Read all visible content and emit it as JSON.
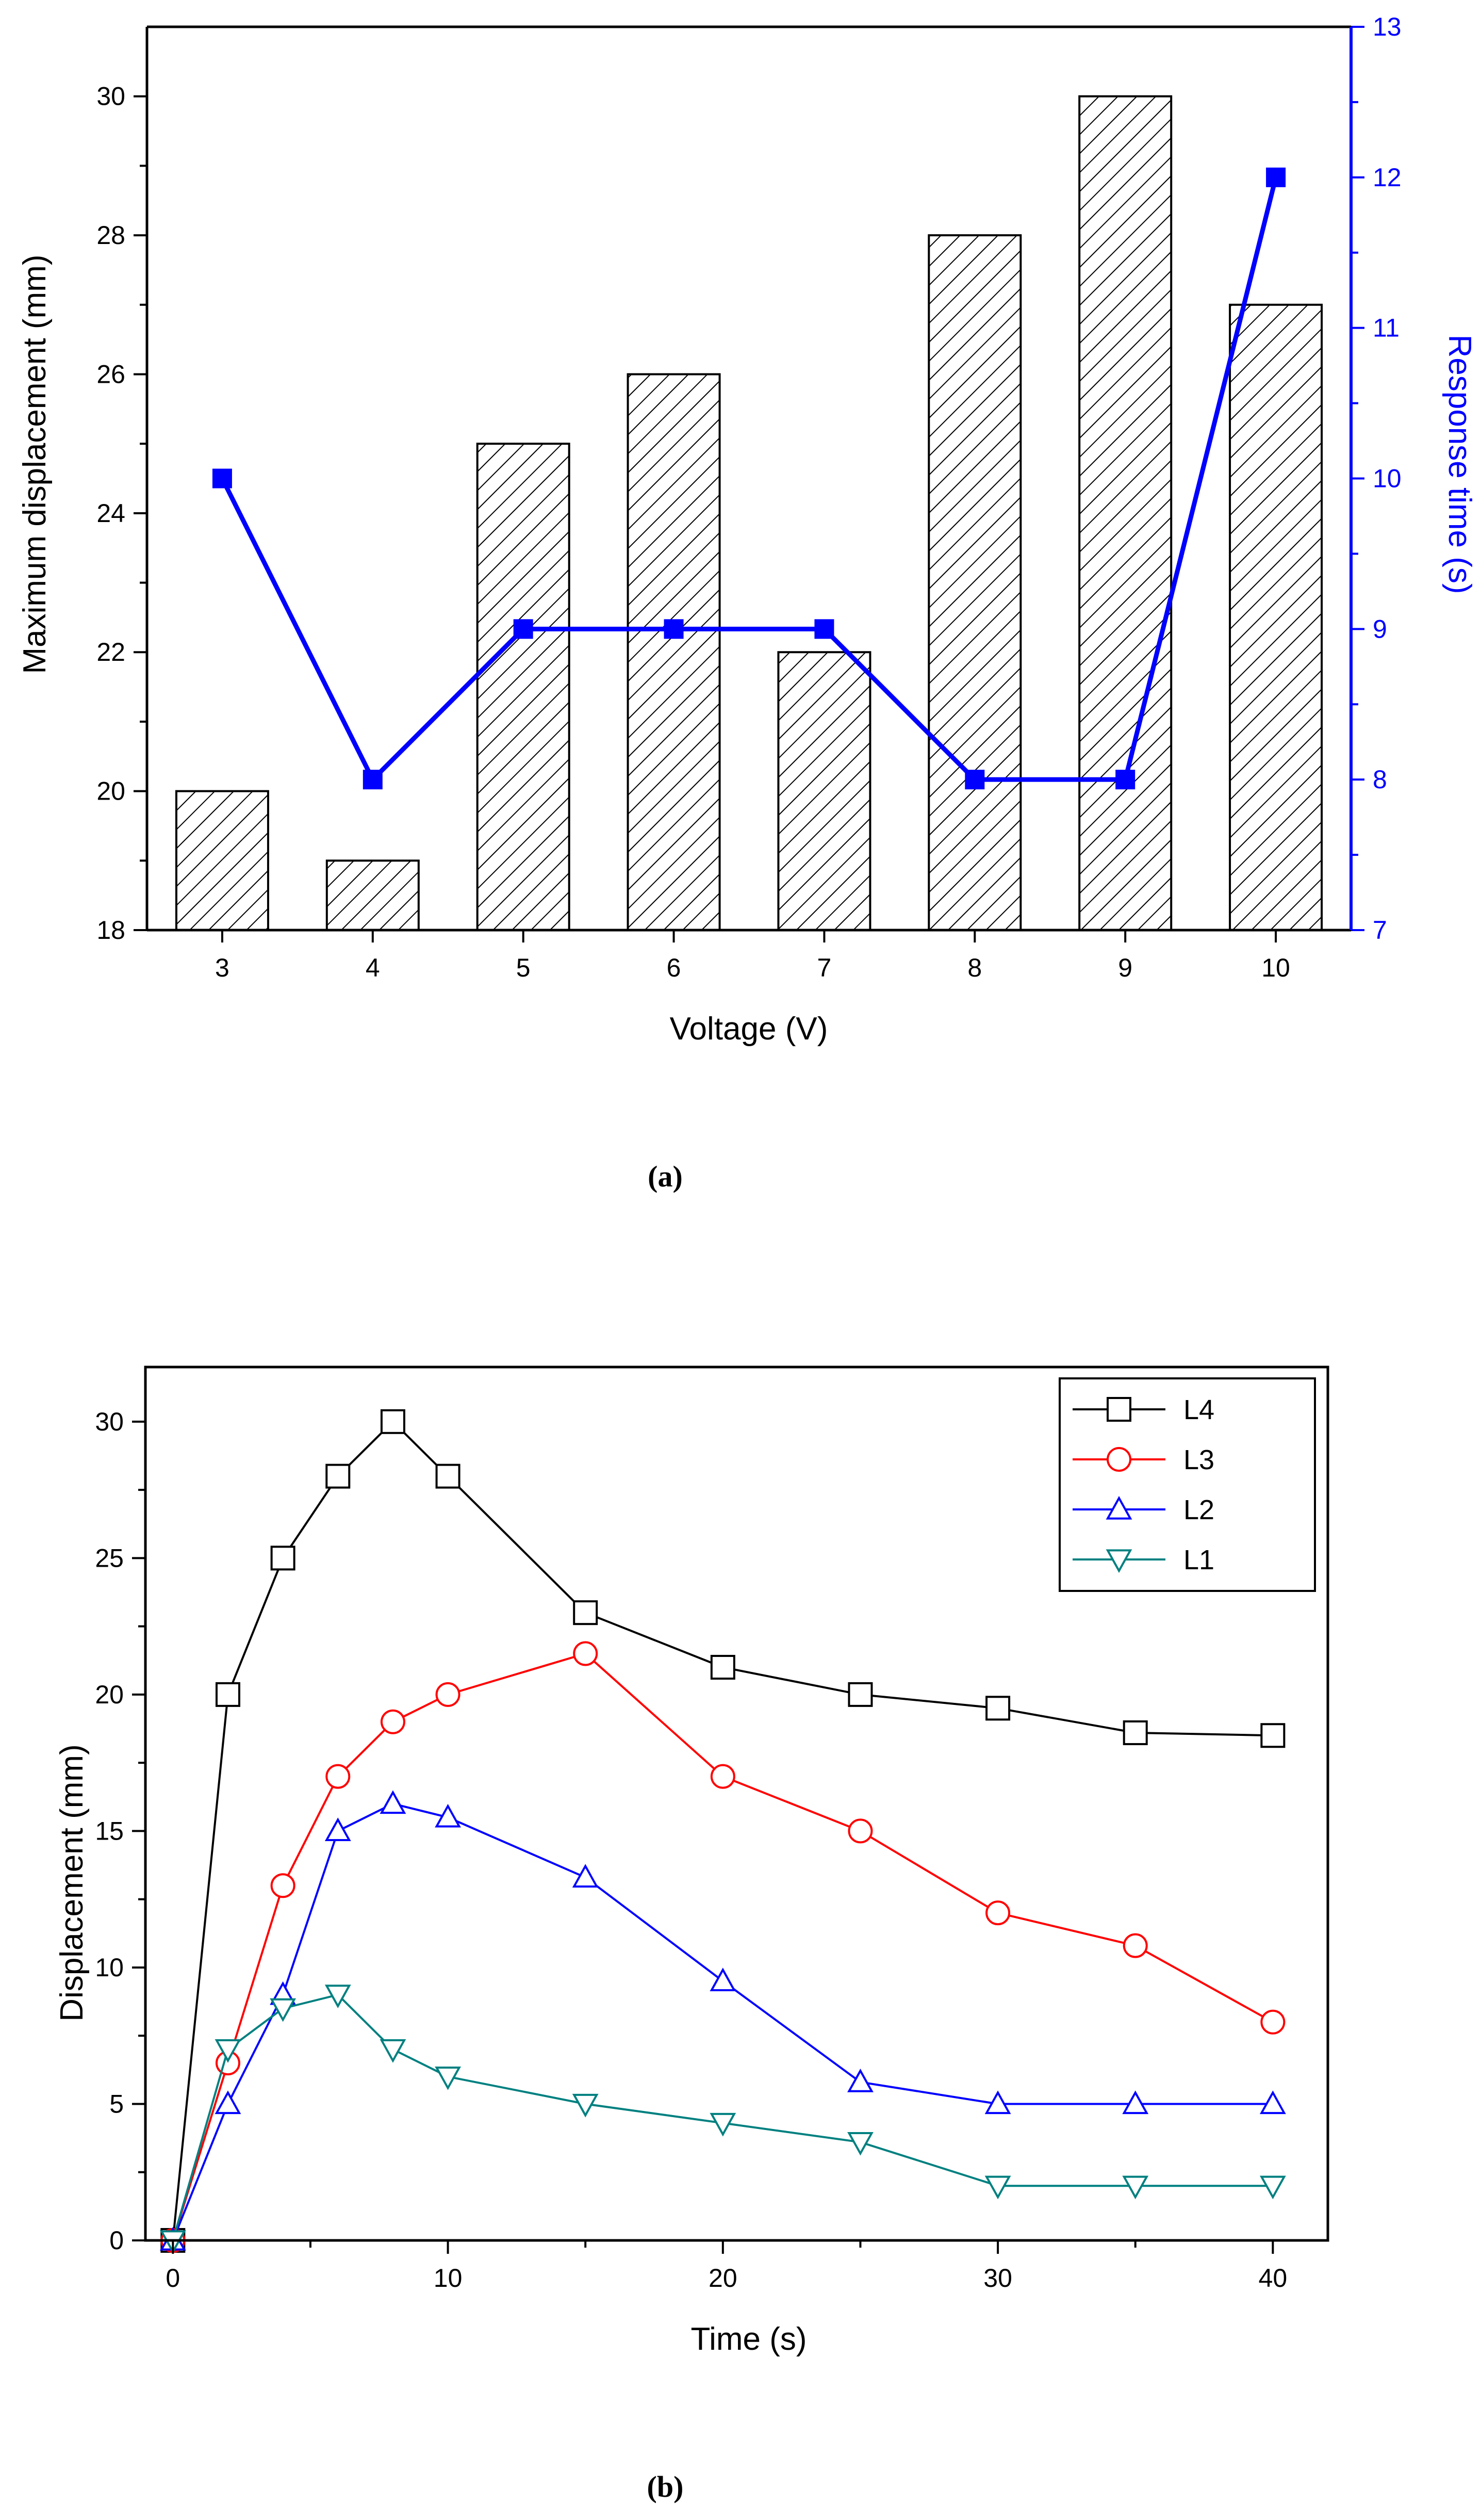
{
  "colors": {
    "axis": "#000000",
    "right_axis": "#0000ff",
    "response_line": "#0000ff",
    "L4": "#000000",
    "L3": "#ff0000",
    "L2": "#0000ff",
    "L1": "#008080"
  },
  "chart_data": [
    {
      "type": "bar",
      "caption": "(a)",
      "categories": [
        "3",
        "4",
        "5",
        "6",
        "7",
        "8",
        "9",
        "10"
      ],
      "xlabel": "Voltage (V)",
      "ylabel": "Maximum displacement (mm)",
      "ylim": [
        18,
        31
      ],
      "yticks": [
        18,
        20,
        22,
        24,
        26,
        28,
        30
      ],
      "y2label": "Response time (s)",
      "y2lim": [
        7,
        13
      ],
      "y2ticks": [
        7,
        8,
        9,
        10,
        11,
        12,
        13
      ],
      "bar_pattern": "diagonal-hatch",
      "series": [
        {
          "name": "Maximum displacement",
          "axis": "left",
          "kind": "bar",
          "values": [
            20,
            19,
            25,
            26,
            22,
            28,
            30,
            27
          ]
        },
        {
          "name": "Response time",
          "axis": "right",
          "kind": "line",
          "marker": "filled-square",
          "values": [
            10,
            8,
            9,
            9,
            9,
            8,
            8,
            12
          ]
        }
      ]
    },
    {
      "type": "line",
      "caption": "(b)",
      "xlabel": "Time (s)",
      "ylabel": "Displacement (mm)",
      "xlim": [
        -1,
        42
      ],
      "ylim": [
        0,
        32
      ],
      "xticks": [
        0,
        10,
        20,
        30,
        40
      ],
      "yticks": [
        0,
        5,
        10,
        15,
        20,
        25,
        30
      ],
      "legend_position": "top-right",
      "x": [
        0,
        2,
        4,
        6,
        8,
        10,
        15,
        20,
        25,
        30,
        35,
        40
      ],
      "series": [
        {
          "name": "L4",
          "marker": "square",
          "values": [
            0,
            20,
            25,
            28,
            30,
            28,
            23,
            21,
            20,
            19.5,
            18.6,
            18.5
          ]
        },
        {
          "name": "L3",
          "marker": "circle",
          "values": [
            0,
            6.5,
            13,
            17,
            19,
            20,
            21.5,
            17,
            15,
            12,
            10.8,
            8
          ]
        },
        {
          "name": "L2",
          "marker": "triangle-up",
          "values": [
            0,
            5,
            9,
            15,
            16,
            15.5,
            13.3,
            9.5,
            5.8,
            5,
            5,
            5
          ]
        },
        {
          "name": "L1",
          "marker": "triangle-down",
          "values": [
            0,
            7,
            8.5,
            9,
            7,
            6,
            5,
            4.3,
            3.6,
            2,
            2,
            2
          ]
        }
      ]
    }
  ]
}
